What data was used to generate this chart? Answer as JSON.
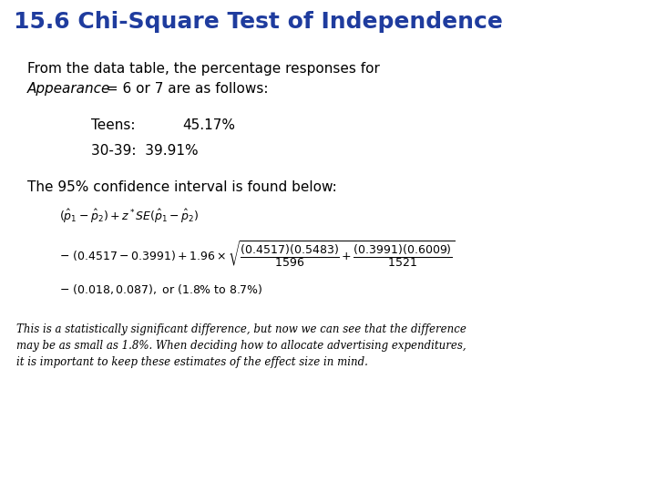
{
  "title": "15.6 Chi-Square Test of Independence",
  "title_color": "#1F3C9E",
  "title_fontsize": 18,
  "bg_color": "#FFFFFF",
  "line1": "From the data table, the percentage responses for",
  "line2_italic": "Appearance",
  "line2_normal": " = 6 or 7 are as follows:",
  "teens_label": "Teens:",
  "teens_value": "45.17%",
  "age_label": "30-39:  39.91%",
  "ci_intro": "The 95% confidence interval is found below:",
  "body_text": "This is a statistically significant difference, but now we can see that the difference\nmay be as small as 1.8%. When deciding how to allocate advertising expenditures,\nit is important to keep these estimates of the effect size in mind.",
  "text_color": "#000000",
  "body_fontsize": 8.5,
  "main_fontsize": 11,
  "formula_fontsize": 9
}
